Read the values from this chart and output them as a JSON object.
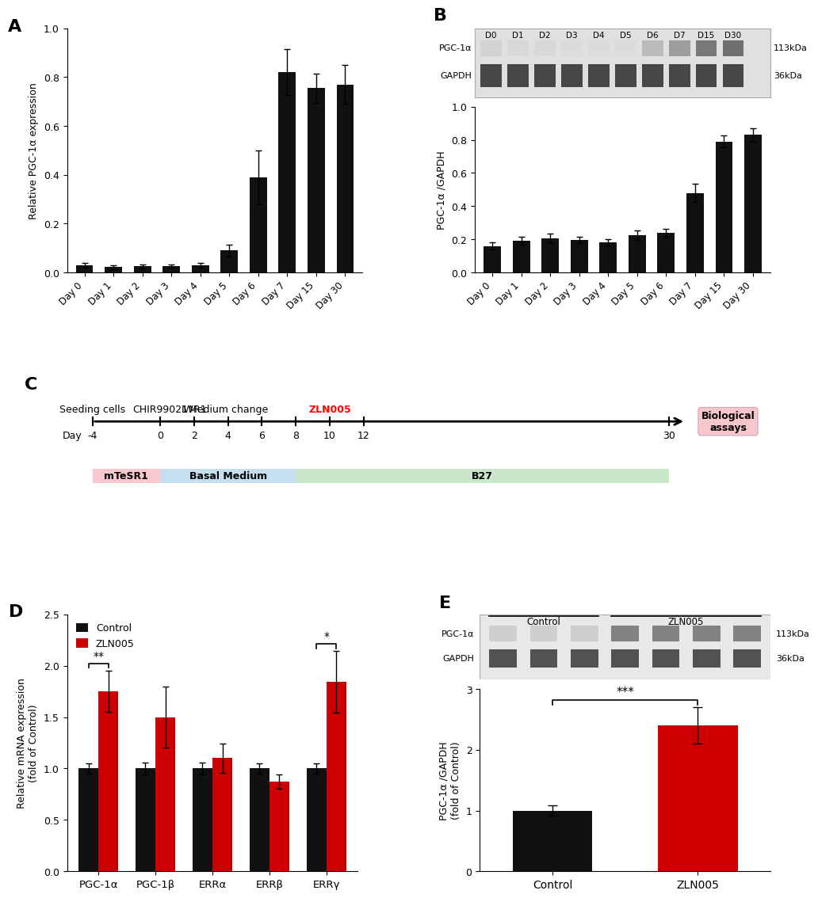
{
  "panel_A": {
    "categories": [
      "Day 0",
      "Day 1",
      "Day 2",
      "Day 3",
      "Day 4",
      "Day 5",
      "Day 6",
      "Day 7",
      "Day 15",
      "Day 30"
    ],
    "values": [
      0.03,
      0.022,
      0.025,
      0.025,
      0.03,
      0.09,
      0.39,
      0.82,
      0.755,
      0.77
    ],
    "errors": [
      0.01,
      0.008,
      0.008,
      0.007,
      0.01,
      0.025,
      0.11,
      0.095,
      0.06,
      0.08
    ],
    "ylabel": "Relative PGC-1α expression",
    "ylim": [
      0.0,
      1.0
    ],
    "yticks": [
      0.0,
      0.2,
      0.4,
      0.6,
      0.8,
      1.0
    ]
  },
  "panel_B_blot": {
    "days": [
      "D0",
      "D1",
      "D2",
      "D3",
      "D4",
      "D5",
      "D6",
      "D7",
      "D15",
      "D30"
    ],
    "pgc_intensities": [
      0.25,
      0.22,
      0.22,
      0.2,
      0.2,
      0.2,
      0.38,
      0.55,
      0.75,
      0.8
    ],
    "gapdh_intensity": 0.85,
    "kda_labels": [
      "113kDa",
      "36kDa"
    ]
  },
  "panel_B_bar": {
    "categories": [
      "Day 0",
      "Day 1",
      "Day 2",
      "Day 3",
      "Day 4",
      "Day 5",
      "Day 6",
      "Day 7",
      "Day 15",
      "Day 30"
    ],
    "values": [
      0.16,
      0.19,
      0.205,
      0.195,
      0.18,
      0.225,
      0.24,
      0.48,
      0.79,
      0.83
    ],
    "errors": [
      0.022,
      0.025,
      0.03,
      0.02,
      0.02,
      0.03,
      0.025,
      0.055,
      0.035,
      0.04
    ],
    "ylabel": "PGC-1α /GAPDH",
    "ylim": [
      0.0,
      1.0
    ],
    "yticks": [
      0.0,
      0.2,
      0.4,
      0.6,
      0.8,
      1.0
    ]
  },
  "panel_C": {
    "xmin": -4,
    "xmax": 30,
    "ticks": [
      -4,
      0,
      2,
      4,
      6,
      8,
      10,
      12,
      30
    ],
    "labels_above": [
      {
        "text": "Seeding cells",
        "x": -4,
        "color": "black"
      },
      {
        "text": "CHIR99021",
        "x": 0,
        "color": "black"
      },
      {
        "text": "IWR1",
        "x": 2,
        "color": "black"
      },
      {
        "text": "Medium change",
        "x": 4,
        "color": "black"
      },
      {
        "text": "ZLN005",
        "x": 10,
        "color": "red"
      }
    ],
    "bio_assays_text": "Biological\nassays",
    "bio_assays_color": "#f5c6cb",
    "media_bars": [
      {
        "label": "mTeSR1",
        "start": -4,
        "end": 0,
        "color": "#f8c8ce"
      },
      {
        "label": "Basal Medium",
        "start": 0,
        "end": 8,
        "color": "#c5dff0"
      },
      {
        "label": "B27",
        "start": 8,
        "end": 30,
        "color": "#c8e6c9"
      }
    ]
  },
  "panel_D": {
    "categories": [
      "PGC-1α",
      "PGC-1β",
      "ERRα",
      "ERRβ",
      "ERRγ"
    ],
    "control_values": [
      1.0,
      1.0,
      1.0,
      1.0,
      1.0
    ],
    "zln005_values": [
      1.75,
      1.5,
      1.1,
      0.87,
      1.84
    ],
    "control_errors": [
      0.05,
      0.06,
      0.06,
      0.05,
      0.05
    ],
    "zln005_errors": [
      0.2,
      0.3,
      0.14,
      0.07,
      0.3
    ],
    "ylabel": "Relative mRNA expression\n(fold of Control)",
    "ylim": [
      0.0,
      2.5
    ],
    "yticks": [
      0.0,
      0.5,
      1.0,
      1.5,
      2.0,
      2.5
    ],
    "significance": [
      {
        "x": 0,
        "label": "**"
      },
      {
        "x": 4,
        "label": "*"
      }
    ],
    "bar_width": 0.35,
    "control_color": "#111111",
    "zln005_color": "#cc0000"
  },
  "panel_E_blot": {
    "ctrl_pgc_intensity": 0.25,
    "zln_pgc_intensity": 0.65,
    "gapdh_intensity": 0.85,
    "n_ctrl": 3,
    "n_zln": 4,
    "kda_labels": [
      "113kDa",
      "36kDa"
    ]
  },
  "panel_E_bar": {
    "categories": [
      "Control",
      "ZLN005"
    ],
    "values": [
      1.0,
      2.4
    ],
    "errors": [
      0.08,
      0.3
    ],
    "ylabel": "PGC-1α /GAPDH\n(fold of Control)",
    "ylim": [
      0.0,
      3.0
    ],
    "yticks": [
      0,
      1,
      2,
      3
    ],
    "significance": "***",
    "control_color": "#111111",
    "zln005_color": "#cc0000"
  },
  "bar_color": "#111111"
}
